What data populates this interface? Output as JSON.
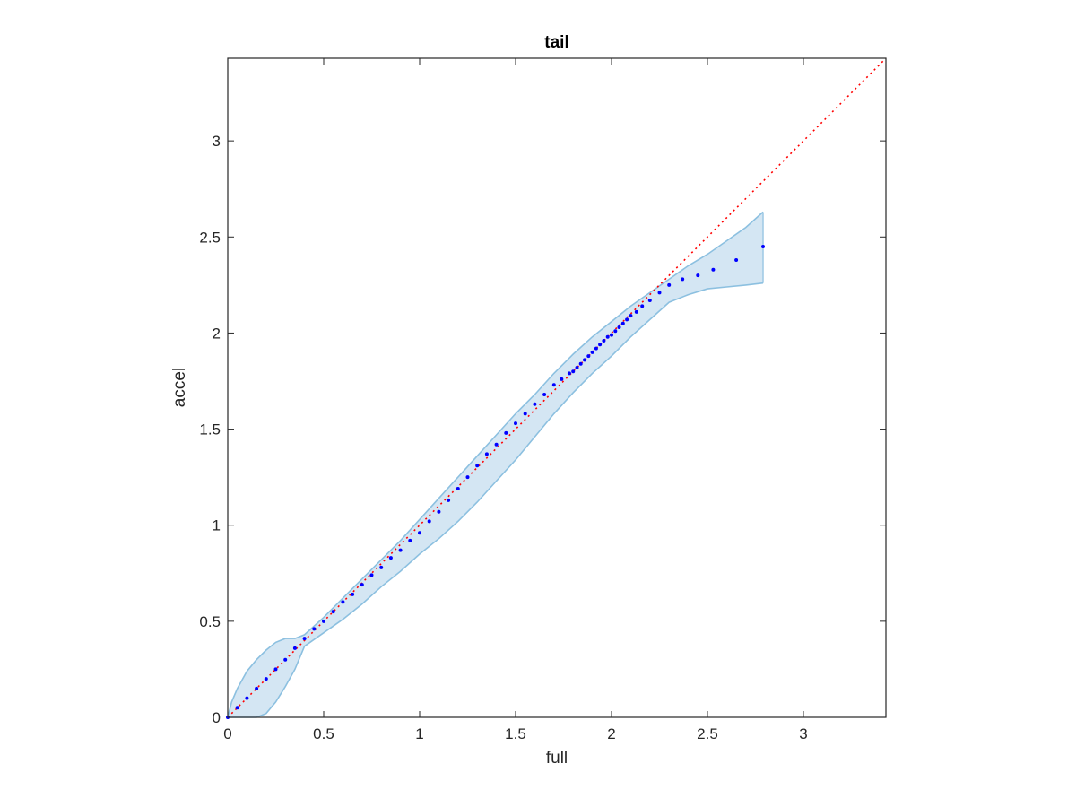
{
  "chart_data": {
    "type": "scatter",
    "title": "tail",
    "xlabel": "full",
    "ylabel": "accel",
    "xlim": [
      0,
      3.43
    ],
    "ylim": [
      0,
      3.43
    ],
    "xticks": [
      {
        "value": 0,
        "label": "0"
      },
      {
        "value": 0.5,
        "label": "0.5"
      },
      {
        "value": 1,
        "label": "1"
      },
      {
        "value": 1.5,
        "label": "1.5"
      },
      {
        "value": 2,
        "label": "2"
      },
      {
        "value": 2.5,
        "label": "2.5"
      },
      {
        "value": 3,
        "label": "3"
      }
    ],
    "yticks": [
      {
        "value": 0,
        "label": "0"
      },
      {
        "value": 0.5,
        "label": "0.5"
      },
      {
        "value": 1,
        "label": "1"
      },
      {
        "value": 1.5,
        "label": "1.5"
      },
      {
        "value": 2,
        "label": "2"
      },
      {
        "value": 2.5,
        "label": "2.5"
      },
      {
        "value": 3,
        "label": "3"
      }
    ],
    "grid": false,
    "colors": {
      "points": "#0000ff",
      "reference_line": "#ff0000",
      "band_fill": "#d4e6f3",
      "band_edge": "#8cc0e0",
      "axes": "#262626"
    },
    "reference_line": {
      "style": "dotted",
      "from": [
        0,
        0
      ],
      "to": [
        3.43,
        3.43
      ]
    },
    "points": {
      "x": [
        0,
        0.05,
        0.1,
        0.15,
        0.2,
        0.25,
        0.3,
        0.35,
        0.4,
        0.45,
        0.5,
        0.55,
        0.6,
        0.65,
        0.7,
        0.75,
        0.8,
        0.85,
        0.9,
        0.95,
        1.0,
        1.05,
        1.1,
        1.15,
        1.2,
        1.25,
        1.3,
        1.35,
        1.4,
        1.45,
        1.5,
        1.55,
        1.6,
        1.65,
        1.7,
        1.74,
        1.78,
        1.8,
        1.82,
        1.84,
        1.86,
        1.88,
        1.9,
        1.92,
        1.94,
        1.96,
        1.98,
        2.0,
        2.02,
        2.04,
        2.06,
        2.08,
        2.1,
        2.13,
        2.16,
        2.2,
        2.25,
        2.3,
        2.37,
        2.45,
        2.53,
        2.65,
        2.79
      ],
      "y": [
        0,
        0.05,
        0.1,
        0.15,
        0.2,
        0.25,
        0.3,
        0.36,
        0.41,
        0.46,
        0.5,
        0.55,
        0.6,
        0.64,
        0.69,
        0.74,
        0.78,
        0.83,
        0.87,
        0.92,
        0.96,
        1.02,
        1.07,
        1.13,
        1.19,
        1.25,
        1.31,
        1.37,
        1.42,
        1.48,
        1.53,
        1.58,
        1.63,
        1.68,
        1.73,
        1.76,
        1.79,
        1.8,
        1.82,
        1.84,
        1.86,
        1.88,
        1.9,
        1.92,
        1.94,
        1.96,
        1.98,
        1.99,
        2.01,
        2.03,
        2.05,
        2.07,
        2.09,
        2.11,
        2.14,
        2.17,
        2.21,
        2.25,
        2.28,
        2.3,
        2.33,
        2.38,
        2.45
      ]
    },
    "band": {
      "x": [
        0,
        0.02,
        0.05,
        0.1,
        0.15,
        0.2,
        0.25,
        0.3,
        0.35,
        0.4,
        0.5,
        0.6,
        0.7,
        0.8,
        0.9,
        1.0,
        1.1,
        1.2,
        1.3,
        1.4,
        1.5,
        1.6,
        1.7,
        1.8,
        1.9,
        2.0,
        2.1,
        2.2,
        2.3,
        2.4,
        2.5,
        2.6,
        2.7,
        2.79
      ],
      "upper": [
        0,
        0.08,
        0.15,
        0.24,
        0.3,
        0.35,
        0.39,
        0.41,
        0.41,
        0.43,
        0.52,
        0.62,
        0.72,
        0.82,
        0.92,
        1.03,
        1.14,
        1.25,
        1.36,
        1.47,
        1.58,
        1.68,
        1.79,
        1.89,
        1.98,
        2.06,
        2.14,
        2.21,
        2.28,
        2.35,
        2.41,
        2.48,
        2.55,
        2.63
      ],
      "lower": [
        0,
        0,
        0,
        0,
        0,
        0.02,
        0.08,
        0.16,
        0.25,
        0.37,
        0.44,
        0.51,
        0.59,
        0.68,
        0.76,
        0.85,
        0.93,
        1.02,
        1.12,
        1.23,
        1.34,
        1.46,
        1.58,
        1.69,
        1.79,
        1.88,
        1.98,
        2.07,
        2.16,
        2.2,
        2.23,
        2.24,
        2.25,
        2.26
      ]
    }
  }
}
